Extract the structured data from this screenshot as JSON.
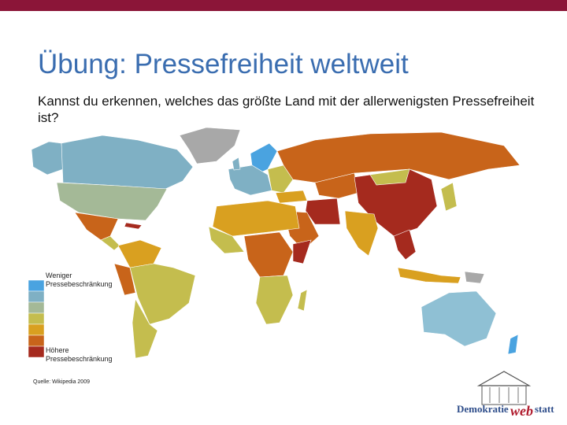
{
  "title": "Übung: Pressefreiheit weltweit",
  "question": "Kannst du erkennen, welches das größte Land mit der allerwenigsten Pressefreiheit ist?",
  "legend": {
    "top_label": [
      "Weniger",
      "Pressebeschränkung"
    ],
    "bottom_label": [
      "Höhere",
      "Pressebeschränkung"
    ],
    "colors": [
      "#4aa3e0",
      "#7fb0c4",
      "#a4b997",
      "#c4bd4e",
      "#d9a020",
      "#c8641a",
      "#a52a1e"
    ]
  },
  "source": "Quelle: Wikipedia 2009",
  "logo": {
    "left": "Demokratie",
    "middle": "web",
    "right": "statt"
  }
}
